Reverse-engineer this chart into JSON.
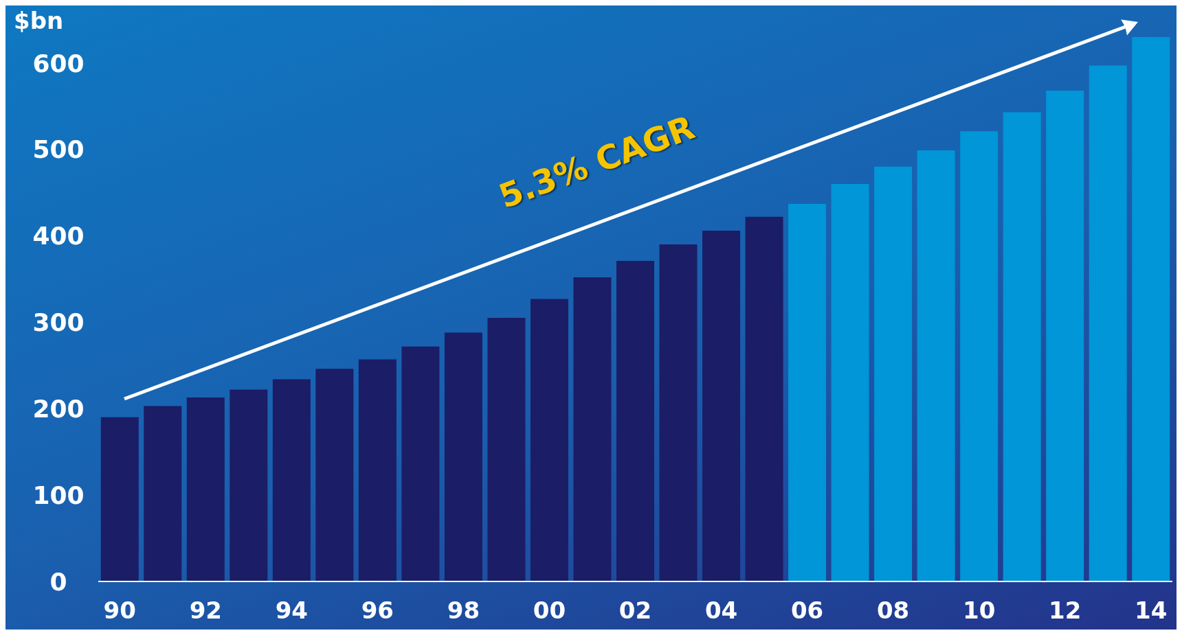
{
  "chart_data": {
    "type": "bar",
    "ylabel": "$bn",
    "categories": [
      "90",
      null,
      "92",
      null,
      "94",
      null,
      "96",
      null,
      "98",
      null,
      "00",
      null,
      "02",
      null,
      "04",
      null,
      "06",
      null,
      "08",
      null,
      "10",
      null,
      "12",
      null,
      "14"
    ],
    "values": [
      190,
      203,
      213,
      222,
      234,
      246,
      257,
      272,
      288,
      305,
      327,
      352,
      371,
      390,
      406,
      422,
      437,
      460,
      480,
      499,
      521,
      543,
      568,
      597,
      630
    ],
    "colors": [
      "#1b1d66",
      "#1b1d66",
      "#1b1d66",
      "#1b1d66",
      "#1b1d66",
      "#1b1d66",
      "#1b1d66",
      "#1b1d66",
      "#1b1d66",
      "#1b1d66",
      "#1b1d66",
      "#1b1d66",
      "#1b1d66",
      "#1b1d66",
      "#1b1d66",
      "#1b1d66",
      "#0096d8",
      "#0096d8",
      "#0096d8",
      "#0096d8",
      "#0096d8",
      "#0096d8",
      "#0096d8",
      "#0096d8",
      "#0096d8"
    ],
    "ylim": [
      0,
      630
    ],
    "yticks": [
      0,
      100,
      200,
      300,
      400,
      500,
      600
    ],
    "grid": false,
    "annotations": [
      "5.3% CAGR"
    ]
  }
}
